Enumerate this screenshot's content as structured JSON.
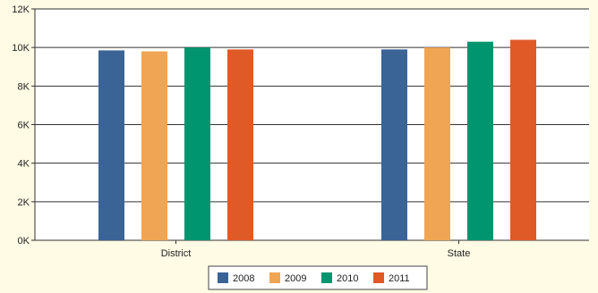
{
  "chart_data": {
    "type": "bar",
    "categories": [
      "District",
      "State"
    ],
    "series": [
      {
        "name": "2008",
        "color": "#3a6496",
        "values": [
          9850,
          9900
        ]
      },
      {
        "name": "2009",
        "color": "#f0a554",
        "values": [
          9800,
          10000
        ]
      },
      {
        "name": "2010",
        "color": "#00956f",
        "values": [
          10000,
          10300
        ]
      },
      {
        "name": "2011",
        "color": "#e05a28",
        "values": [
          9900,
          10400
        ]
      }
    ],
    "y_ticks": [
      "0K",
      "2K",
      "4K",
      "6K",
      "8K",
      "10K",
      "12K"
    ],
    "ylim": [
      0,
      12000
    ],
    "grid": true,
    "legend_position": "bottom-center",
    "colors": {
      "background": "#fffbe5",
      "plot_background": "#ffffff",
      "gridline": "#333333"
    }
  }
}
